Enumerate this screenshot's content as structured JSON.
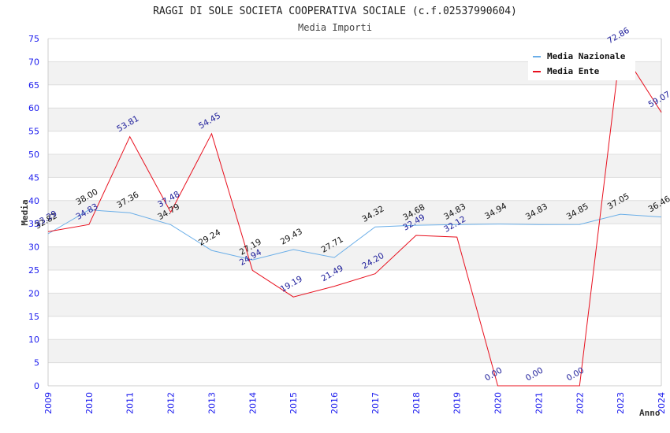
{
  "chart_data": {
    "type": "line",
    "title": "RAGGI DI SOLE SOCIETA COOPERATIVA SOCIALE (c.f.02537990604)",
    "subtitle": "Media Importi",
    "xlabel": "Anno",
    "ylabel": "Media",
    "ylim": [
      0,
      75
    ],
    "yticks": [
      0,
      5,
      10,
      15,
      20,
      25,
      30,
      35,
      40,
      45,
      50,
      55,
      60,
      65,
      70,
      75
    ],
    "grid": true,
    "legend_position": "top-right",
    "categories": [
      "2009",
      "2010",
      "2011",
      "2012",
      "2013",
      "2014",
      "2015",
      "2016",
      "2017",
      "2018",
      "2019",
      "2020",
      "2021",
      "2022",
      "2023",
      "2024"
    ],
    "series": [
      {
        "name": "Media Nazionale",
        "color": "#6aaee8",
        "values": [
          32.82,
          38.0,
          37.36,
          34.79,
          29.24,
          27.19,
          29.43,
          27.71,
          34.32,
          34.68,
          34.83,
          34.94,
          34.83,
          34.85,
          37.05,
          36.46
        ],
        "labels": [
          "32.82",
          "38.00",
          "37.36",
          "34.79",
          "29.24",
          "27.19",
          "29.43",
          "27.71",
          "34.32",
          "34.68",
          "34.83",
          "34.94",
          "34.83",
          "34.85",
          "37.05",
          "36.46"
        ]
      },
      {
        "name": "Media Ente",
        "color": "#e8101e",
        "values": [
          33.29,
          34.83,
          53.81,
          37.48,
          54.45,
          24.94,
          19.19,
          21.49,
          24.2,
          32.49,
          32.12,
          0.0,
          0.0,
          0.0,
          72.86,
          59.07
        ],
        "labels": [
          "33.29",
          "34.83",
          "53.81",
          "37.48",
          "54.45",
          "24.94",
          "19.19",
          "21.49",
          "24.20",
          "32.49",
          "32.12",
          "0.00",
          "0.00",
          "0.00",
          "72.86",
          "59.07"
        ]
      }
    ]
  }
}
